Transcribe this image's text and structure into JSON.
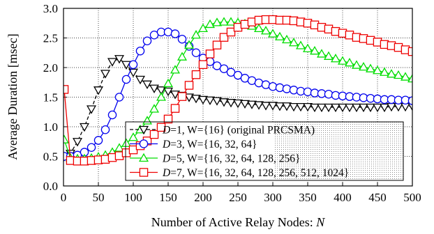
{
  "chart_data": {
    "type": "line",
    "xlabel": "Number of Active Relay Nodes: ",
    "xlabel_var": "N",
    "ylabel": "Average Duration [msec]",
    "xlim": [
      0,
      500
    ],
    "ylim": [
      0.0,
      3.0
    ],
    "xticks": [
      0,
      50,
      100,
      150,
      200,
      250,
      300,
      350,
      400,
      450,
      500
    ],
    "yticks": [
      0.0,
      0.5,
      1.0,
      1.5,
      2.0,
      2.5,
      3.0
    ],
    "ytick_labels": [
      "0.0",
      "0.5",
      "1.0",
      "1.5",
      "2.0",
      "2.5",
      "3.0"
    ],
    "grid": true,
    "legend_position": "bottom-right",
    "series": [
      {
        "name": "D=1, W={16}  (original PRCSMA)",
        "legend_var": "D",
        "legend_rest": "=1, W={16}  (original PRCSMA)",
        "color": "#000000",
        "dash": "dashed",
        "marker": "triangle-down",
        "x": [
          1,
          10,
          20,
          30,
          40,
          50,
          60,
          70,
          80,
          90,
          100,
          110,
          120,
          130,
          140,
          150,
          160,
          170,
          180,
          190,
          200,
          210,
          220,
          230,
          240,
          250,
          260,
          270,
          280,
          290,
          300,
          310,
          320,
          330,
          340,
          350,
          360,
          370,
          380,
          390,
          400,
          410,
          420,
          430,
          440,
          450,
          460,
          470,
          480,
          490,
          500
        ],
        "y": [
          0.5,
          0.55,
          0.75,
          1.0,
          1.3,
          1.62,
          1.9,
          2.1,
          2.15,
          2.05,
          1.92,
          1.8,
          1.72,
          1.65,
          1.62,
          1.6,
          1.55,
          1.53,
          1.5,
          1.48,
          1.46,
          1.45,
          1.44,
          1.42,
          1.41,
          1.4,
          1.39,
          1.38,
          1.37,
          1.36,
          1.36,
          1.35,
          1.35,
          1.34,
          1.34,
          1.34,
          1.33,
          1.33,
          1.33,
          1.33,
          1.33,
          1.33,
          1.33,
          1.33,
          1.33,
          1.33,
          1.33,
          1.34,
          1.34,
          1.34,
          1.35
        ]
      },
      {
        "name": "D=3, W={16, 32, 64}",
        "legend_var": "D",
        "legend_rest": "=3, W={16, 32, 64}",
        "color": "#0000ee",
        "dash": "solid",
        "marker": "circle",
        "x": [
          1,
          10,
          20,
          30,
          40,
          50,
          60,
          70,
          80,
          90,
          100,
          110,
          120,
          130,
          140,
          150,
          160,
          170,
          180,
          190,
          200,
          210,
          220,
          230,
          240,
          250,
          260,
          270,
          280,
          290,
          300,
          310,
          320,
          330,
          340,
          350,
          360,
          370,
          380,
          390,
          400,
          410,
          420,
          430,
          440,
          450,
          460,
          470,
          480,
          490,
          500
        ],
        "y": [
          0.5,
          0.5,
          0.52,
          0.57,
          0.65,
          0.77,
          0.95,
          1.2,
          1.5,
          1.8,
          2.05,
          2.28,
          2.45,
          2.55,
          2.6,
          2.6,
          2.57,
          2.48,
          2.36,
          2.25,
          2.16,
          2.1,
          2.03,
          1.98,
          1.92,
          1.87,
          1.82,
          1.78,
          1.74,
          1.71,
          1.68,
          1.66,
          1.64,
          1.62,
          1.6,
          1.59,
          1.57,
          1.56,
          1.55,
          1.53,
          1.52,
          1.51,
          1.5,
          1.49,
          1.48,
          1.47,
          1.46,
          1.46,
          1.45,
          1.45,
          1.44
        ]
      },
      {
        "name": "D=5, W={16, 32, 64, 128, 256}",
        "legend_var": "D",
        "legend_rest": "=5, W={16, 32, 64, 128, 256}",
        "color": "#00dd00",
        "dash": "solid",
        "marker": "triangle-up",
        "x": [
          1,
          10,
          20,
          30,
          40,
          50,
          60,
          70,
          80,
          90,
          100,
          110,
          120,
          130,
          140,
          150,
          160,
          170,
          180,
          190,
          200,
          210,
          220,
          230,
          240,
          250,
          260,
          270,
          280,
          290,
          300,
          310,
          320,
          330,
          340,
          350,
          360,
          370,
          380,
          390,
          400,
          410,
          420,
          430,
          440,
          450,
          460,
          470,
          480,
          490,
          500
        ],
        "y": [
          0.78,
          0.47,
          0.46,
          0.46,
          0.47,
          0.49,
          0.52,
          0.57,
          0.64,
          0.72,
          0.82,
          0.95,
          1.1,
          1.3,
          1.5,
          1.73,
          1.96,
          2.18,
          2.38,
          2.55,
          2.66,
          2.73,
          2.76,
          2.77,
          2.77,
          2.76,
          2.74,
          2.7,
          2.66,
          2.62,
          2.57,
          2.52,
          2.47,
          2.42,
          2.37,
          2.32,
          2.28,
          2.23,
          2.19,
          2.15,
          2.11,
          2.08,
          2.04,
          2.01,
          1.98,
          1.95,
          1.92,
          1.89,
          1.87,
          1.84,
          1.81
        ]
      },
      {
        "name": "D=7, W={16, 32, 64, 128, 256, 512, 1024}",
        "legend_var": "D",
        "legend_rest": "=7, W={16, 32, 64, 128, 256, 512, 1024}",
        "color": "#ee0000",
        "dash": "solid",
        "marker": "square",
        "x": [
          1,
          10,
          20,
          30,
          40,
          50,
          60,
          70,
          80,
          90,
          100,
          110,
          120,
          130,
          140,
          150,
          160,
          170,
          180,
          190,
          200,
          210,
          220,
          230,
          240,
          250,
          260,
          270,
          280,
          290,
          300,
          310,
          320,
          330,
          340,
          350,
          360,
          370,
          380,
          390,
          400,
          410,
          420,
          430,
          440,
          450,
          460,
          470,
          480,
          490,
          500
        ],
        "y": [
          1.63,
          0.43,
          0.42,
          0.42,
          0.43,
          0.44,
          0.45,
          0.48,
          0.51,
          0.56,
          0.61,
          0.68,
          0.76,
          0.87,
          0.99,
          1.13,
          1.31,
          1.51,
          1.7,
          1.88,
          2.05,
          2.23,
          2.38,
          2.51,
          2.6,
          2.68,
          2.73,
          2.77,
          2.8,
          2.81,
          2.81,
          2.8,
          2.8,
          2.79,
          2.77,
          2.75,
          2.72,
          2.68,
          2.65,
          2.61,
          2.58,
          2.55,
          2.51,
          2.49,
          2.46,
          2.43,
          2.39,
          2.37,
          2.34,
          2.3,
          2.27
        ]
      }
    ]
  }
}
